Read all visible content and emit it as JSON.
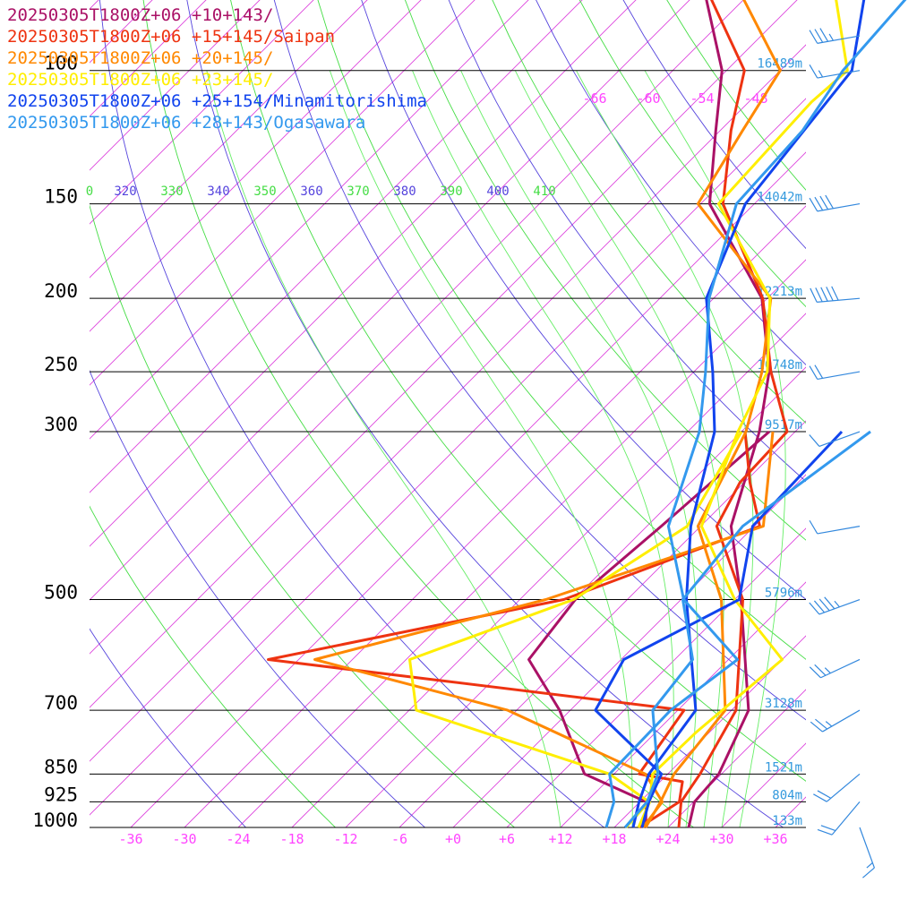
{
  "chart_data": {
    "type": "line",
    "title": "",
    "legend": [
      {
        "label": "20250305T1800Z+06 +10+143/",
        "color": "#aa1166"
      },
      {
        "label": "20250305T1800Z+06 +15+145/Saipan",
        "color": "#ee3311"
      },
      {
        "label": "20250305T1800Z+06 +20+145/",
        "color": "#ff8800"
      },
      {
        "label": "20250305T1800Z+06 +23+145/",
        "color": "#ffee00"
      },
      {
        "label": "20250305T1800Z+06 +25+154/Minamitorishima",
        "color": "#1144ee"
      },
      {
        "label": "20250305T1800Z+06 +28+143/Ogasawara",
        "color": "#3399ee"
      }
    ],
    "pressure_levels": [
      {
        "p": 100,
        "label": "100",
        "height": "16489m"
      },
      {
        "p": 150,
        "label": "150",
        "height": "14042m"
      },
      {
        "p": 200,
        "label": "200",
        "height": "12213m"
      },
      {
        "p": 250,
        "label": "250",
        "height": "10748m"
      },
      {
        "p": 300,
        "label": "300",
        "height": "9517m"
      },
      {
        "p": 500,
        "label": "500",
        "height": "5796m"
      },
      {
        "p": 700,
        "label": "700",
        "height": "3128m"
      },
      {
        "p": 850,
        "label": "850",
        "height": "1521m"
      },
      {
        "p": 925,
        "label": "925",
        "height": "804m"
      },
      {
        "p": 1000,
        "label": "1000",
        "height": "133m"
      }
    ],
    "temp_ticks": [
      "-36",
      "-30",
      "-24",
      "-18",
      "-12",
      "-6",
      "+0",
      "+6",
      "+12",
      "+18",
      "+24",
      "+30",
      "+36"
    ],
    "upper_temp_ticks": [
      "-66",
      "-60",
      "-54",
      "-48"
    ],
    "theta_labels": [
      {
        "label": "0",
        "color": "#44dd44"
      },
      {
        "label": "320",
        "color": "#5544dd"
      },
      {
        "label": "330",
        "color": "#44dd44"
      },
      {
        "label": "340",
        "color": "#5544dd"
      },
      {
        "label": "350",
        "color": "#44dd44"
      },
      {
        "label": "360",
        "color": "#5544dd"
      },
      {
        "label": "370",
        "color": "#44dd44"
      },
      {
        "label": "380",
        "color": "#5544dd"
      },
      {
        "label": "390",
        "color": "#44dd44"
      },
      {
        "label": "400",
        "color": "#5544dd"
      },
      {
        "label": "410",
        "color": "#44dd44"
      }
    ],
    "xlim": [
      -40,
      40
    ],
    "ylim": [
      1000,
      100
    ],
    "y_scale": "log",
    "series": [
      {
        "name": "20250305T1800Z+06 +10+143/",
        "temperature": [
          [
            1000,
            26.3
          ],
          [
            925,
            24.1
          ],
          [
            850,
            23.7
          ],
          [
            700,
            19.9
          ],
          [
            500,
            6.7
          ],
          [
            400,
            -2.6
          ],
          [
            300,
            -10.0
          ],
          [
            250,
            -15.6
          ],
          [
            200,
            -24.6
          ],
          [
            150,
            -41.0
          ],
          [
            120,
            -48.5
          ],
          [
            100,
            -54.5
          ],
          [
            80,
            -64.5
          ],
          [
            70,
            -69.8
          ]
        ],
        "dewpoint": [
          [
            1000,
            21.5
          ],
          [
            925,
            18.7
          ],
          [
            850,
            8.7
          ],
          [
            700,
            -1.2
          ],
          [
            600,
            -10.3
          ],
          [
            500,
            -11.8
          ],
          [
            400,
            -10.4
          ],
          [
            300,
            -8.9
          ]
        ]
      },
      {
        "name": "20250305T1800Z+06 +15+145/Saipan",
        "temperature": [
          [
            1000,
            25.2
          ],
          [
            925,
            22.6
          ],
          [
            850,
            21.6
          ],
          [
            700,
            18.5
          ],
          [
            500,
            6.9
          ],
          [
            400,
            -4.2
          ],
          [
            350,
            -6.5
          ],
          [
            300,
            -6.9
          ],
          [
            250,
            -15.4
          ],
          [
            200,
            -24.5
          ],
          [
            150,
            -39.5
          ],
          [
            120,
            -46.8
          ],
          [
            100,
            -52.0
          ],
          [
            80,
            -64.0
          ],
          [
            70,
            -70.5
          ]
        ],
        "dewpoint": [
          [
            1000,
            20.8
          ],
          [
            925,
            22.4
          ],
          [
            870,
            20.5
          ],
          [
            850,
            14.8
          ],
          [
            700,
            12.7
          ],
          [
            600,
            -39.4
          ],
          [
            500,
            -13.1
          ],
          [
            400,
            0.6
          ],
          [
            350,
            -5.4
          ],
          [
            300,
            -11.6
          ]
        ]
      },
      {
        "name": "20250305T1800Z+06 +20+145/",
        "temperature": [
          [
            1000,
            21.5
          ],
          [
            925,
            20.3
          ],
          [
            850,
            18.7
          ],
          [
            700,
            17.3
          ],
          [
            500,
            4.5
          ],
          [
            400,
            -6.3
          ],
          [
            300,
            -11.5
          ],
          [
            250,
            -16.4
          ],
          [
            200,
            -23.6
          ],
          [
            150,
            -42.3
          ],
          [
            120,
            -45.5
          ],
          [
            100,
            -48.0
          ],
          [
            80,
            -60.4
          ],
          [
            70,
            -67.0
          ]
        ],
        "dewpoint": [
          [
            1000,
            21.2
          ],
          [
            925,
            20.5
          ],
          [
            850,
            15.5
          ],
          [
            700,
            -7.0
          ],
          [
            600,
            -34.2
          ],
          [
            500,
            -15.1
          ],
          [
            400,
            1.0
          ],
          [
            300,
            -8.5
          ]
        ]
      },
      {
        "name": "20250305T1800Z+06 +23+145/",
        "temperature": [
          [
            1000,
            20.7
          ],
          [
            925,
            19.1
          ],
          [
            850,
            16.3
          ],
          [
            750,
            16.5
          ],
          [
            600,
            18.0
          ],
          [
            500,
            6.0
          ],
          [
            400,
            -5.9
          ],
          [
            300,
            -12.4
          ],
          [
            250,
            -15.8
          ],
          [
            200,
            -23.7
          ],
          [
            150,
            -40.0
          ],
          [
            110,
            -41.0
          ],
          [
            100,
            -40.5
          ],
          [
            80,
            -50.0
          ],
          [
            70,
            -57.5
          ]
        ],
        "dewpoint": [
          [
            1000,
            19.3
          ],
          [
            925,
            19.0
          ],
          [
            850,
            11.5
          ],
          [
            700,
            -17.2
          ],
          [
            600,
            -23.6
          ],
          [
            500,
            -12.0
          ],
          [
            400,
            -7.5
          ],
          [
            300,
            -12.0
          ]
        ]
      },
      {
        "name": "20250305T1800Z+06 +25+154/Minamitorishima",
        "temperature": [
          [
            1000,
            20.1
          ],
          [
            925,
            17.9
          ],
          [
            850,
            15.9
          ],
          [
            700,
            14.0
          ],
          [
            500,
            0.6
          ],
          [
            400,
            -7.1
          ],
          [
            300,
            -15.0
          ],
          [
            250,
            -21.9
          ],
          [
            200,
            -30.8
          ],
          [
            150,
            -37.0
          ],
          [
            100,
            -40.0
          ],
          [
            80,
            -46.8
          ],
          [
            70,
            -57.2
          ]
        ],
        "dewpoint": [
          [
            1000,
            21.1
          ],
          [
            925,
            19.0
          ],
          [
            850,
            17.3
          ],
          [
            700,
            2.8
          ],
          [
            600,
            0.3
          ],
          [
            500,
            6.5
          ],
          [
            400,
            -0.2
          ],
          [
            300,
            -0.8
          ]
        ]
      },
      {
        "name": "20250305T1800Z+06 +28+143/Ogasawara",
        "temperature": [
          [
            1000,
            17.1
          ],
          [
            925,
            15.1
          ],
          [
            850,
            11.5
          ],
          [
            700,
            11.2
          ],
          [
            600,
            13.0
          ],
          [
            500,
            0.3
          ],
          [
            400,
            -9.6
          ],
          [
            300,
            -16.7
          ],
          [
            250,
            -22.7
          ],
          [
            200,
            -30.5
          ],
          [
            150,
            -38.0
          ],
          [
            120,
            -38.8
          ],
          [
            100,
            -41.0
          ],
          [
            80,
            -42.0
          ],
          [
            70,
            -53.8
          ]
        ],
        "dewpoint": [
          [
            1000,
            19.2
          ],
          [
            925,
            18.8
          ],
          [
            850,
            16.9
          ],
          [
            700,
            9.2
          ],
          [
            600,
            8.0
          ],
          [
            500,
            0.2
          ],
          [
            400,
            -1.3
          ],
          [
            300,
            2.4
          ]
        ]
      }
    ],
    "wind_barbs": [
      {
        "p": 70,
        "direction_deg": 300,
        "speed_kt": 5
      },
      {
        "p": 90,
        "direction_deg": 260,
        "speed_kt": 35
      },
      {
        "p": 100,
        "direction_deg": 260,
        "speed_kt": 15
      },
      {
        "p": 150,
        "direction_deg": 260,
        "speed_kt": 40
      },
      {
        "p": 200,
        "direction_deg": 265,
        "speed_kt": 50
      },
      {
        "p": 250,
        "direction_deg": 260,
        "speed_kt": 20
      },
      {
        "p": 300,
        "direction_deg": 250,
        "speed_kt": 10
      },
      {
        "p": 400,
        "direction_deg": 260,
        "speed_kt": 10
      },
      {
        "p": 500,
        "direction_deg": 250,
        "speed_kt": 45
      },
      {
        "p": 600,
        "direction_deg": 245,
        "speed_kt": 25
      },
      {
        "p": 700,
        "direction_deg": 240,
        "speed_kt": 25
      },
      {
        "p": 850,
        "direction_deg": 230,
        "speed_kt": 20
      },
      {
        "p": 925,
        "direction_deg": 220,
        "speed_kt": 20
      },
      {
        "p": 1000,
        "direction_deg": 160,
        "speed_kt": 15
      }
    ]
  }
}
